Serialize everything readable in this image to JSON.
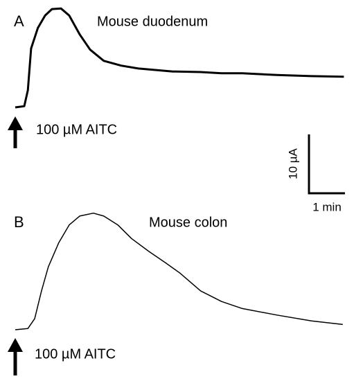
{
  "chart_data": [
    {
      "type": "line",
      "panel_label": "A",
      "title": "Mouse duodenum",
      "annotation": "100 µM AITC",
      "x": [
        0,
        0.25,
        0.35,
        0.44,
        0.63,
        0.83,
        1.02,
        1.27,
        1.5,
        1.79,
        2.08,
        2.46,
        2.94,
        3.42,
        4.38,
        5.15,
        5.73,
        6.31,
        7.27,
        8.23,
        9.13
      ],
      "values": [
        0,
        0.2,
        2.9,
        10,
        13.5,
        15.6,
        16.7,
        16.8,
        15.6,
        12.4,
        9.8,
        7.9,
        7.1,
        6.6,
        6.1,
        6,
        5.8,
        5.8,
        5.5,
        5.3,
        5.2
      ],
      "color": "#000000",
      "xlim": [
        0,
        9.2
      ],
      "ylim": [
        0,
        20
      ]
    },
    {
      "type": "line",
      "panel_label": "B",
      "title": "Mouse colon",
      "annotation": "100 µM AITC",
      "x": [
        0,
        0.35,
        0.54,
        0.73,
        0.92,
        1.21,
        1.5,
        1.79,
        2.17,
        2.46,
        2.85,
        3.23,
        3.71,
        4.19,
        4.58,
        5.15,
        5.73,
        6.31,
        7.27,
        8.23,
        9.1
      ],
      "values": [
        0,
        0.2,
        1.9,
        6.6,
        10.7,
        14.8,
        17.8,
        19.3,
        19.8,
        19.3,
        17.8,
        15.5,
        13.3,
        11.3,
        9.6,
        6.6,
        4.8,
        3.6,
        2.5,
        1.5,
        0.9
      ],
      "color": "#000000",
      "xlim": [
        0,
        9.2
      ],
      "ylim": [
        0,
        20
      ]
    }
  ],
  "scale_bar": {
    "x_size": 1,
    "x_label": "1 min",
    "y_size": 10,
    "y_label": "10 µA"
  }
}
